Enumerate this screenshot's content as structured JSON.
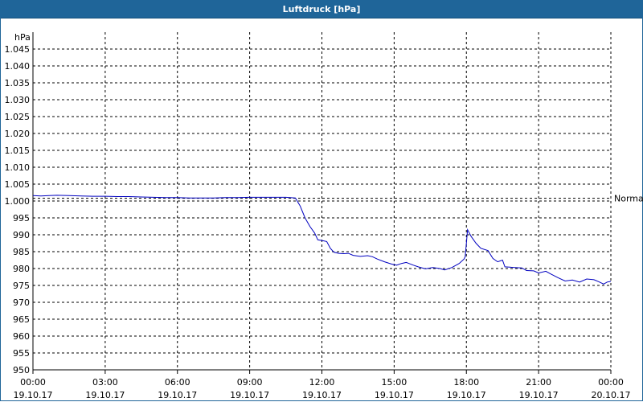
{
  "window": {
    "title": "Luftdruck [hPa]"
  },
  "chart_data": {
    "type": "line",
    "title": "Luftdruck [hPa]",
    "unit_label": "hPa",
    "reference_label": "Normal",
    "reference_value": 1000.8,
    "ylim": [
      950,
      1050
    ],
    "yticks": [
      950,
      955,
      960,
      965,
      970,
      975,
      980,
      985,
      990,
      995,
      "1.000",
      "1.005",
      "1.010",
      "1.015",
      "1.020",
      "1.025",
      "1.030",
      "1.035",
      "1.040",
      "1.045"
    ],
    "xlim": [
      0,
      24
    ],
    "xtick_labels": [
      {
        "time": "00:00",
        "date": "19.10.17"
      },
      {
        "time": "03:00",
        "date": "19.10.17"
      },
      {
        "time": "06:00",
        "date": "19.10.17"
      },
      {
        "time": "09:00",
        "date": "19.10.17"
      },
      {
        "time": "12:00",
        "date": "19.10.17"
      },
      {
        "time": "15:00",
        "date": "19.10.17"
      },
      {
        "time": "18:00",
        "date": "19.10.17"
      },
      {
        "time": "21:00",
        "date": "19.10.17"
      },
      {
        "time": "00:00",
        "date": "20.10.17"
      }
    ],
    "grid": true,
    "colors": {
      "line": "#0000c0",
      "grid": "#000000",
      "title_bar": "#1f6599"
    },
    "series": [
      {
        "x_unit": "hours since 19.10.17 00:00",
        "points": [
          [
            0.0,
            1001.6
          ],
          [
            0.33,
            1001.5
          ],
          [
            0.67,
            1001.6
          ],
          [
            1.0,
            1001.7
          ],
          [
            1.5,
            1001.6
          ],
          [
            2.0,
            1001.5
          ],
          [
            2.5,
            1001.4
          ],
          [
            3.0,
            1001.4
          ],
          [
            3.5,
            1001.3
          ],
          [
            4.0,
            1001.3
          ],
          [
            4.5,
            1001.2
          ],
          [
            5.0,
            1001.1
          ],
          [
            5.5,
            1001.0
          ],
          [
            6.0,
            1001.0
          ],
          [
            6.5,
            1000.9
          ],
          [
            7.0,
            1000.9
          ],
          [
            7.5,
            1000.9
          ],
          [
            8.0,
            1001.0
          ],
          [
            8.5,
            1001.0
          ],
          [
            9.0,
            1001.1
          ],
          [
            9.5,
            1001.1
          ],
          [
            10.0,
            1001.1
          ],
          [
            10.5,
            1001.1
          ],
          [
            10.9,
            1000.9
          ],
          [
            11.1,
            998.5
          ],
          [
            11.3,
            995.0
          ],
          [
            11.5,
            992.5
          ],
          [
            11.7,
            990.5
          ],
          [
            11.83,
            988.5
          ],
          [
            12.0,
            988.3
          ],
          [
            12.2,
            988.0
          ],
          [
            12.35,
            986.0
          ],
          [
            12.5,
            984.8
          ],
          [
            12.7,
            984.5
          ],
          [
            12.9,
            984.4
          ],
          [
            13.1,
            984.5
          ],
          [
            13.3,
            983.9
          ],
          [
            13.6,
            983.6
          ],
          [
            13.9,
            983.8
          ],
          [
            14.1,
            983.5
          ],
          [
            14.3,
            982.8
          ],
          [
            14.6,
            982.0
          ],
          [
            14.9,
            981.3
          ],
          [
            15.1,
            981.0
          ],
          [
            15.3,
            981.5
          ],
          [
            15.5,
            981.8
          ],
          [
            15.8,
            981.0
          ],
          [
            16.0,
            980.5
          ],
          [
            16.3,
            979.9
          ],
          [
            16.6,
            980.3
          ],
          [
            16.9,
            980.0
          ],
          [
            17.1,
            979.6
          ],
          [
            17.4,
            980.3
          ],
          [
            17.7,
            981.5
          ],
          [
            17.9,
            982.8
          ],
          [
            17.95,
            983.5
          ],
          [
            18.05,
            991.5
          ],
          [
            18.2,
            989.5
          ],
          [
            18.4,
            987.5
          ],
          [
            18.6,
            986.0
          ],
          [
            18.9,
            985.3
          ],
          [
            19.1,
            983.0
          ],
          [
            19.3,
            982.0
          ],
          [
            19.5,
            982.5
          ],
          [
            19.6,
            980.5
          ],
          [
            20.0,
            980.3
          ],
          [
            20.3,
            980.2
          ],
          [
            20.5,
            979.4
          ],
          [
            20.8,
            979.3
          ],
          [
            21.0,
            978.7
          ],
          [
            21.3,
            979.2
          ],
          [
            21.5,
            978.4
          ],
          [
            21.8,
            977.3
          ],
          [
            22.1,
            976.3
          ],
          [
            22.4,
            976.6
          ],
          [
            22.7,
            976.0
          ],
          [
            23.0,
            976.9
          ],
          [
            23.3,
            976.7
          ],
          [
            23.5,
            976.1
          ],
          [
            23.7,
            975.4
          ],
          [
            23.85,
            976.0
          ],
          [
            24.0,
            976.2
          ]
        ]
      }
    ]
  }
}
